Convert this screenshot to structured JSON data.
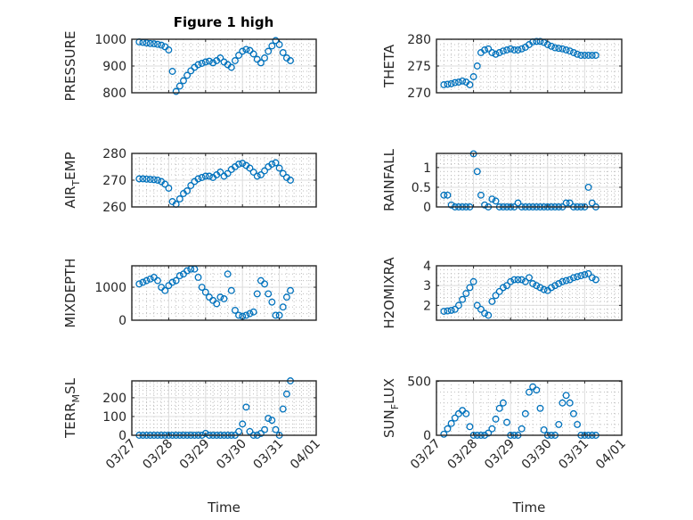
{
  "figure": {
    "title": "Figure 1 high",
    "marker_color": "#0072BD"
  },
  "chart_data": {
    "type": "scatter",
    "x_unit": "days since 03/27",
    "xlim": [
      0,
      5
    ],
    "xticks": [
      0,
      1,
      2,
      3,
      4,
      5
    ],
    "xticklabels": [
      "03/27",
      "03/28",
      "03/29",
      "03/30",
      "03/31",
      "04/01"
    ],
    "xlabel": "Time",
    "grid": true,
    "minor_grid": true,
    "x": [
      0.2,
      0.3,
      0.4,
      0.5,
      0.6,
      0.7,
      0.8,
      0.9,
      1.0,
      1.1,
      1.2,
      1.3,
      1.4,
      1.5,
      1.6,
      1.7,
      1.8,
      1.9,
      2.0,
      2.1,
      2.2,
      2.3,
      2.4,
      2.5,
      2.6,
      2.7,
      2.8,
      2.9,
      3.0,
      3.1,
      3.2,
      3.3,
      3.4,
      3.5,
      3.6,
      3.7,
      3.8,
      3.9,
      4.0,
      4.1,
      4.2,
      4.3
    ],
    "panels": [
      {
        "ylabel": "PRESSURE",
        "ylim": [
          800,
          1000
        ],
        "yticks": [
          800,
          900,
          1000
        ],
        "show_xticklabels": false,
        "y": [
          990,
          988,
          986,
          984,
          983,
          981,
          978,
          972,
          960,
          880,
          805,
          825,
          845,
          865,
          882,
          895,
          905,
          910,
          915,
          918,
          912,
          920,
          930,
          915,
          905,
          895,
          920,
          940,
          955,
          962,
          958,
          945,
          925,
          912,
          930,
          955,
          975,
          995,
          980,
          950,
          930,
          920
        ]
      },
      {
        "ylabel": "THETA",
        "ylim": [
          270,
          280
        ],
        "yticks": [
          270,
          275,
          280
        ],
        "show_xticklabels": false,
        "y": [
          271.5,
          271.6,
          271.7,
          271.9,
          272,
          272.2,
          272,
          271.5,
          273,
          275,
          277.5,
          278,
          278.2,
          277.5,
          277.2,
          277.5,
          277.8,
          278,
          278.2,
          278,
          278,
          278.2,
          278.5,
          279,
          279.5,
          279.6,
          279.6,
          279.4,
          279,
          278.7,
          278.4,
          278.3,
          278.2,
          278,
          277.8,
          277.5,
          277.2,
          277,
          277,
          277,
          277,
          277
        ]
      },
      {
        "ylabel": "AIR_TEMP",
        "ylim": [
          260,
          280
        ],
        "yticks": [
          260,
          270,
          280
        ],
        "show_xticklabels": false,
        "y": [
          270.5,
          270.5,
          270.4,
          270.3,
          270.2,
          270,
          269.5,
          268.5,
          267,
          262,
          261,
          263,
          265,
          266,
          268,
          269.5,
          270.5,
          271,
          271.5,
          271.5,
          271,
          272,
          273,
          271.5,
          272.5,
          274,
          275,
          276,
          276.3,
          275.5,
          274.5,
          273,
          271.5,
          272,
          273.5,
          275,
          276,
          276.5,
          274.5,
          272.5,
          271,
          270
        ]
      },
      {
        "ylabel": "RAINFALL",
        "ylim": [
          0,
          1.36
        ],
        "yticks": [
          0,
          0.5,
          1
        ],
        "show_xticklabels": false,
        "y": [
          0.3,
          0.3,
          0.05,
          0,
          0,
          0,
          0,
          0,
          1.35,
          0.9,
          0.3,
          0.05,
          0,
          0.2,
          0.15,
          0,
          0,
          0,
          0,
          0,
          0.1,
          0,
          0,
          0,
          0,
          0,
          0,
          0,
          0,
          0,
          0,
          0,
          0,
          0.1,
          0.1,
          0,
          0,
          0,
          0,
          0.5,
          0.1,
          0
        ]
      },
      {
        "ylabel": "MIXDEPTH",
        "ylim": [
          0,
          1650
        ],
        "yticks": [
          0,
          1000
        ],
        "show_xticklabels": false,
        "y": [
          1100,
          1150,
          1200,
          1250,
          1300,
          1200,
          1000,
          900,
          1050,
          1150,
          1200,
          1350,
          1400,
          1500,
          1550,
          1550,
          1300,
          1000,
          850,
          700,
          600,
          500,
          700,
          650,
          1400,
          900,
          300,
          150,
          120,
          150,
          200,
          250,
          800,
          1200,
          1100,
          800,
          550,
          150,
          150,
          400,
          700,
          900
        ]
      },
      {
        "ylabel": "H2OMIXRA",
        "ylim": [
          1.25,
          4
        ],
        "yticks": [
          2,
          3,
          4
        ],
        "show_xticklabels": false,
        "y": [
          1.7,
          1.72,
          1.75,
          1.8,
          2.0,
          2.3,
          2.6,
          2.9,
          3.2,
          2.0,
          1.8,
          1.6,
          1.5,
          2.2,
          2.5,
          2.7,
          2.9,
          3.0,
          3.2,
          3.3,
          3.3,
          3.3,
          3.2,
          3.4,
          3.1,
          3.0,
          2.9,
          2.8,
          2.75,
          2.9,
          3.0,
          3.1,
          3.2,
          3.25,
          3.3,
          3.4,
          3.45,
          3.5,
          3.55,
          3.6,
          3.4,
          3.3
        ]
      },
      {
        "ylabel": "TERR_MSL",
        "ylim": [
          0,
          290
        ],
        "yticks": [
          0,
          100,
          200
        ],
        "show_xticklabels": true,
        "y": [
          0,
          0,
          0,
          0,
          0,
          0,
          0,
          0,
          0,
          0,
          0,
          0,
          0,
          0,
          0,
          0,
          0,
          0,
          10,
          0,
          0,
          0,
          0,
          0,
          0,
          0,
          0,
          20,
          60,
          150,
          20,
          0,
          0,
          10,
          30,
          90,
          80,
          30,
          0,
          140,
          220,
          290
        ]
      },
      {
        "ylabel": "SUN_FLUX",
        "ylim": [
          0,
          505
        ],
        "yticks": [
          0,
          500
        ],
        "show_xticklabels": true,
        "y": [
          10,
          60,
          110,
          160,
          200,
          230,
          200,
          80,
          0,
          0,
          0,
          0,
          20,
          60,
          150,
          250,
          300,
          120,
          0,
          0,
          0,
          60,
          200,
          400,
          450,
          420,
          250,
          50,
          0,
          0,
          0,
          100,
          300,
          370,
          300,
          200,
          100,
          0,
          0,
          0,
          0,
          0
        ]
      }
    ]
  }
}
